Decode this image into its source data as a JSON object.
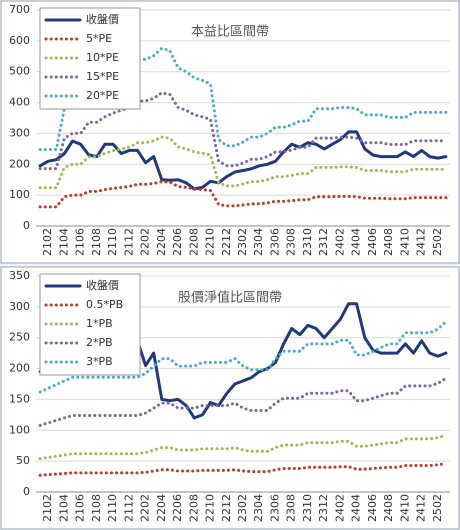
{
  "chart_data": [
    {
      "type": "line",
      "title": "本益比區間帶",
      "categories": [
        null,
        "2102",
        null,
        "2104",
        null,
        "2106",
        null,
        "2108",
        null,
        "2110",
        null,
        "2112",
        null,
        "2202",
        null,
        "2204",
        null,
        "2206",
        null,
        "2208",
        null,
        "2210",
        null,
        "2212",
        null,
        "2302",
        null,
        "2304",
        null,
        "2306",
        null,
        "2308",
        null,
        "2310",
        null,
        "2312",
        null,
        "2402",
        null,
        "2404",
        null,
        "2406",
        null,
        "2408",
        null,
        "2410",
        null,
        "2412",
        null,
        "2502",
        null
      ],
      "series": [
        {
          "name": "收盤價",
          "color": "#1f3a7a",
          "values": [
            195,
            210,
            215,
            235,
            275,
            265,
            230,
            225,
            265,
            265,
            235,
            245,
            245,
            205,
            225,
            150,
            148,
            150,
            140,
            120,
            125,
            145,
            140,
            160,
            175,
            180,
            185,
            195,
            200,
            210,
            240,
            265,
            255,
            270,
            265,
            250,
            265,
            280,
            305,
            305,
            250,
            230,
            225,
            225,
            225,
            240,
            225,
            245,
            225,
            220,
            225
          ]
        },
        {
          "name": "5*PE",
          "color": "#c0392b",
          "values": [
            62,
            62,
            62,
            95,
            100,
            100,
            112,
            112,
            118,
            122,
            125,
            128,
            135,
            135,
            138,
            144,
            142,
            128,
            125,
            120,
            118,
            115,
            70,
            65,
            65,
            68,
            72,
            72,
            75,
            80,
            80,
            82,
            85,
            85,
            95,
            95,
            95,
            96,
            96,
            95,
            90,
            90,
            90,
            88,
            88,
            88,
            92,
            92,
            92,
            92,
            92
          ]
        },
        {
          "name": "10*PE",
          "color": "#9bbb59",
          "values": [
            124,
            124,
            124,
            190,
            200,
            200,
            224,
            224,
            236,
            244,
            250,
            256,
            270,
            270,
            276,
            288,
            284,
            256,
            250,
            240,
            236,
            230,
            140,
            130,
            130,
            136,
            144,
            144,
            150,
            160,
            160,
            164,
            170,
            170,
            190,
            190,
            190,
            192,
            192,
            190,
            180,
            180,
            180,
            176,
            176,
            176,
            184,
            184,
            184,
            184,
            184
          ]
        },
        {
          "name": "15*PE",
          "color": "#8064a2",
          "values": [
            186,
            186,
            186,
            285,
            300,
            300,
            336,
            336,
            354,
            366,
            375,
            384,
            405,
            405,
            414,
            432,
            426,
            384,
            375,
            360,
            354,
            345,
            210,
            195,
            195,
            204,
            216,
            216,
            225,
            240,
            240,
            246,
            255,
            255,
            285,
            285,
            285,
            288,
            288,
            285,
            270,
            270,
            270,
            264,
            264,
            264,
            276,
            276,
            276,
            276,
            276
          ]
        },
        {
          "name": "20*PE",
          "color": "#4bacc6",
          "values": [
            248,
            248,
            248,
            380,
            400,
            400,
            448,
            448,
            472,
            488,
            500,
            512,
            540,
            540,
            552,
            576,
            568,
            512,
            500,
            480,
            472,
            460,
            280,
            260,
            260,
            272,
            288,
            288,
            300,
            320,
            320,
            328,
            340,
            340,
            380,
            380,
            380,
            384,
            384,
            380,
            360,
            360,
            360,
            352,
            352,
            352,
            368,
            368,
            368,
            368,
            368
          ]
        }
      ],
      "ylim": [
        0,
        700
      ],
      "yticks": [
        0,
        100,
        200,
        300,
        400,
        500,
        600,
        700
      ],
      "grid": true,
      "legend": "upper left"
    },
    {
      "type": "line",
      "title": "股價淨值比區間帶",
      "categories": [
        null,
        "2102",
        null,
        "2104",
        null,
        "2106",
        null,
        "2108",
        null,
        "2110",
        null,
        "2112",
        null,
        "2202",
        null,
        "2204",
        null,
        "2206",
        null,
        "2208",
        null,
        "2210",
        null,
        "2212",
        null,
        "2302",
        null,
        "2304",
        null,
        "2306",
        null,
        "2308",
        null,
        "2310",
        null,
        "2312",
        null,
        "2402",
        null,
        "2404",
        null,
        "2406",
        null,
        "2408",
        null,
        "2410",
        null,
        "2412",
        null,
        "2502",
        null
      ],
      "series": [
        {
          "name": "收盤價",
          "color": "#1f3a7a",
          "values": [
            195,
            210,
            215,
            235,
            275,
            265,
            230,
            225,
            265,
            265,
            235,
            245,
            245,
            205,
            225,
            150,
            148,
            150,
            140,
            120,
            125,
            145,
            140,
            160,
            175,
            180,
            185,
            195,
            200,
            210,
            240,
            265,
            255,
            270,
            265,
            250,
            265,
            280,
            305,
            305,
            250,
            230,
            225,
            225,
            225,
            240,
            225,
            245,
            225,
            220,
            225
          ]
        },
        {
          "name": "0.5*PB",
          "color": "#c0392b",
          "values": [
            27,
            28,
            29,
            30,
            31,
            31,
            31,
            31,
            31,
            31,
            31,
            31,
            31,
            32,
            34,
            36,
            36,
            34,
            34,
            34,
            35,
            35,
            35,
            35,
            36,
            34,
            33,
            33,
            33,
            36,
            38,
            38,
            38,
            40,
            40,
            40,
            40,
            41,
            41,
            37,
            37,
            38,
            39,
            40,
            40,
            43,
            43,
            43,
            43,
            44,
            46
          ]
        },
        {
          "name": "1*PB",
          "color": "#9bbb59",
          "values": [
            54,
            56,
            58,
            60,
            62,
            62,
            62,
            62,
            62,
            62,
            62,
            62,
            62,
            64,
            68,
            72,
            72,
            68,
            68,
            68,
            70,
            70,
            70,
            70,
            72,
            68,
            66,
            66,
            66,
            72,
            76,
            76,
            76,
            80,
            80,
            80,
            80,
            82,
            82,
            74,
            74,
            76,
            78,
            80,
            80,
            86,
            86,
            86,
            86,
            88,
            92
          ]
        },
        {
          "name": "2*PB",
          "color": "#8064a2",
          "values": [
            108,
            112,
            116,
            120,
            124,
            124,
            124,
            124,
            124,
            124,
            124,
            124,
            124,
            128,
            136,
            144,
            144,
            136,
            136,
            136,
            140,
            140,
            140,
            140,
            144,
            136,
            132,
            132,
            132,
            144,
            152,
            152,
            152,
            160,
            160,
            160,
            160,
            164,
            164,
            148,
            148,
            152,
            156,
            160,
            160,
            172,
            172,
            172,
            172,
            176,
            184
          ]
        },
        {
          "name": "3*PB",
          "color": "#4bacc6",
          "values": [
            162,
            168,
            174,
            180,
            186,
            186,
            186,
            186,
            186,
            186,
            186,
            186,
            186,
            192,
            204,
            216,
            216,
            204,
            204,
            204,
            210,
            210,
            210,
            210,
            216,
            204,
            198,
            198,
            198,
            216,
            228,
            228,
            228,
            240,
            240,
            240,
            240,
            246,
            246,
            222,
            222,
            228,
            234,
            240,
            240,
            258,
            258,
            258,
            258,
            264,
            276
          ]
        }
      ],
      "ylim": [
        0,
        350
      ],
      "yticks": [
        0,
        50,
        100,
        150,
        200,
        250,
        300,
        350
      ],
      "grid": true,
      "legend": "upper left"
    }
  ]
}
